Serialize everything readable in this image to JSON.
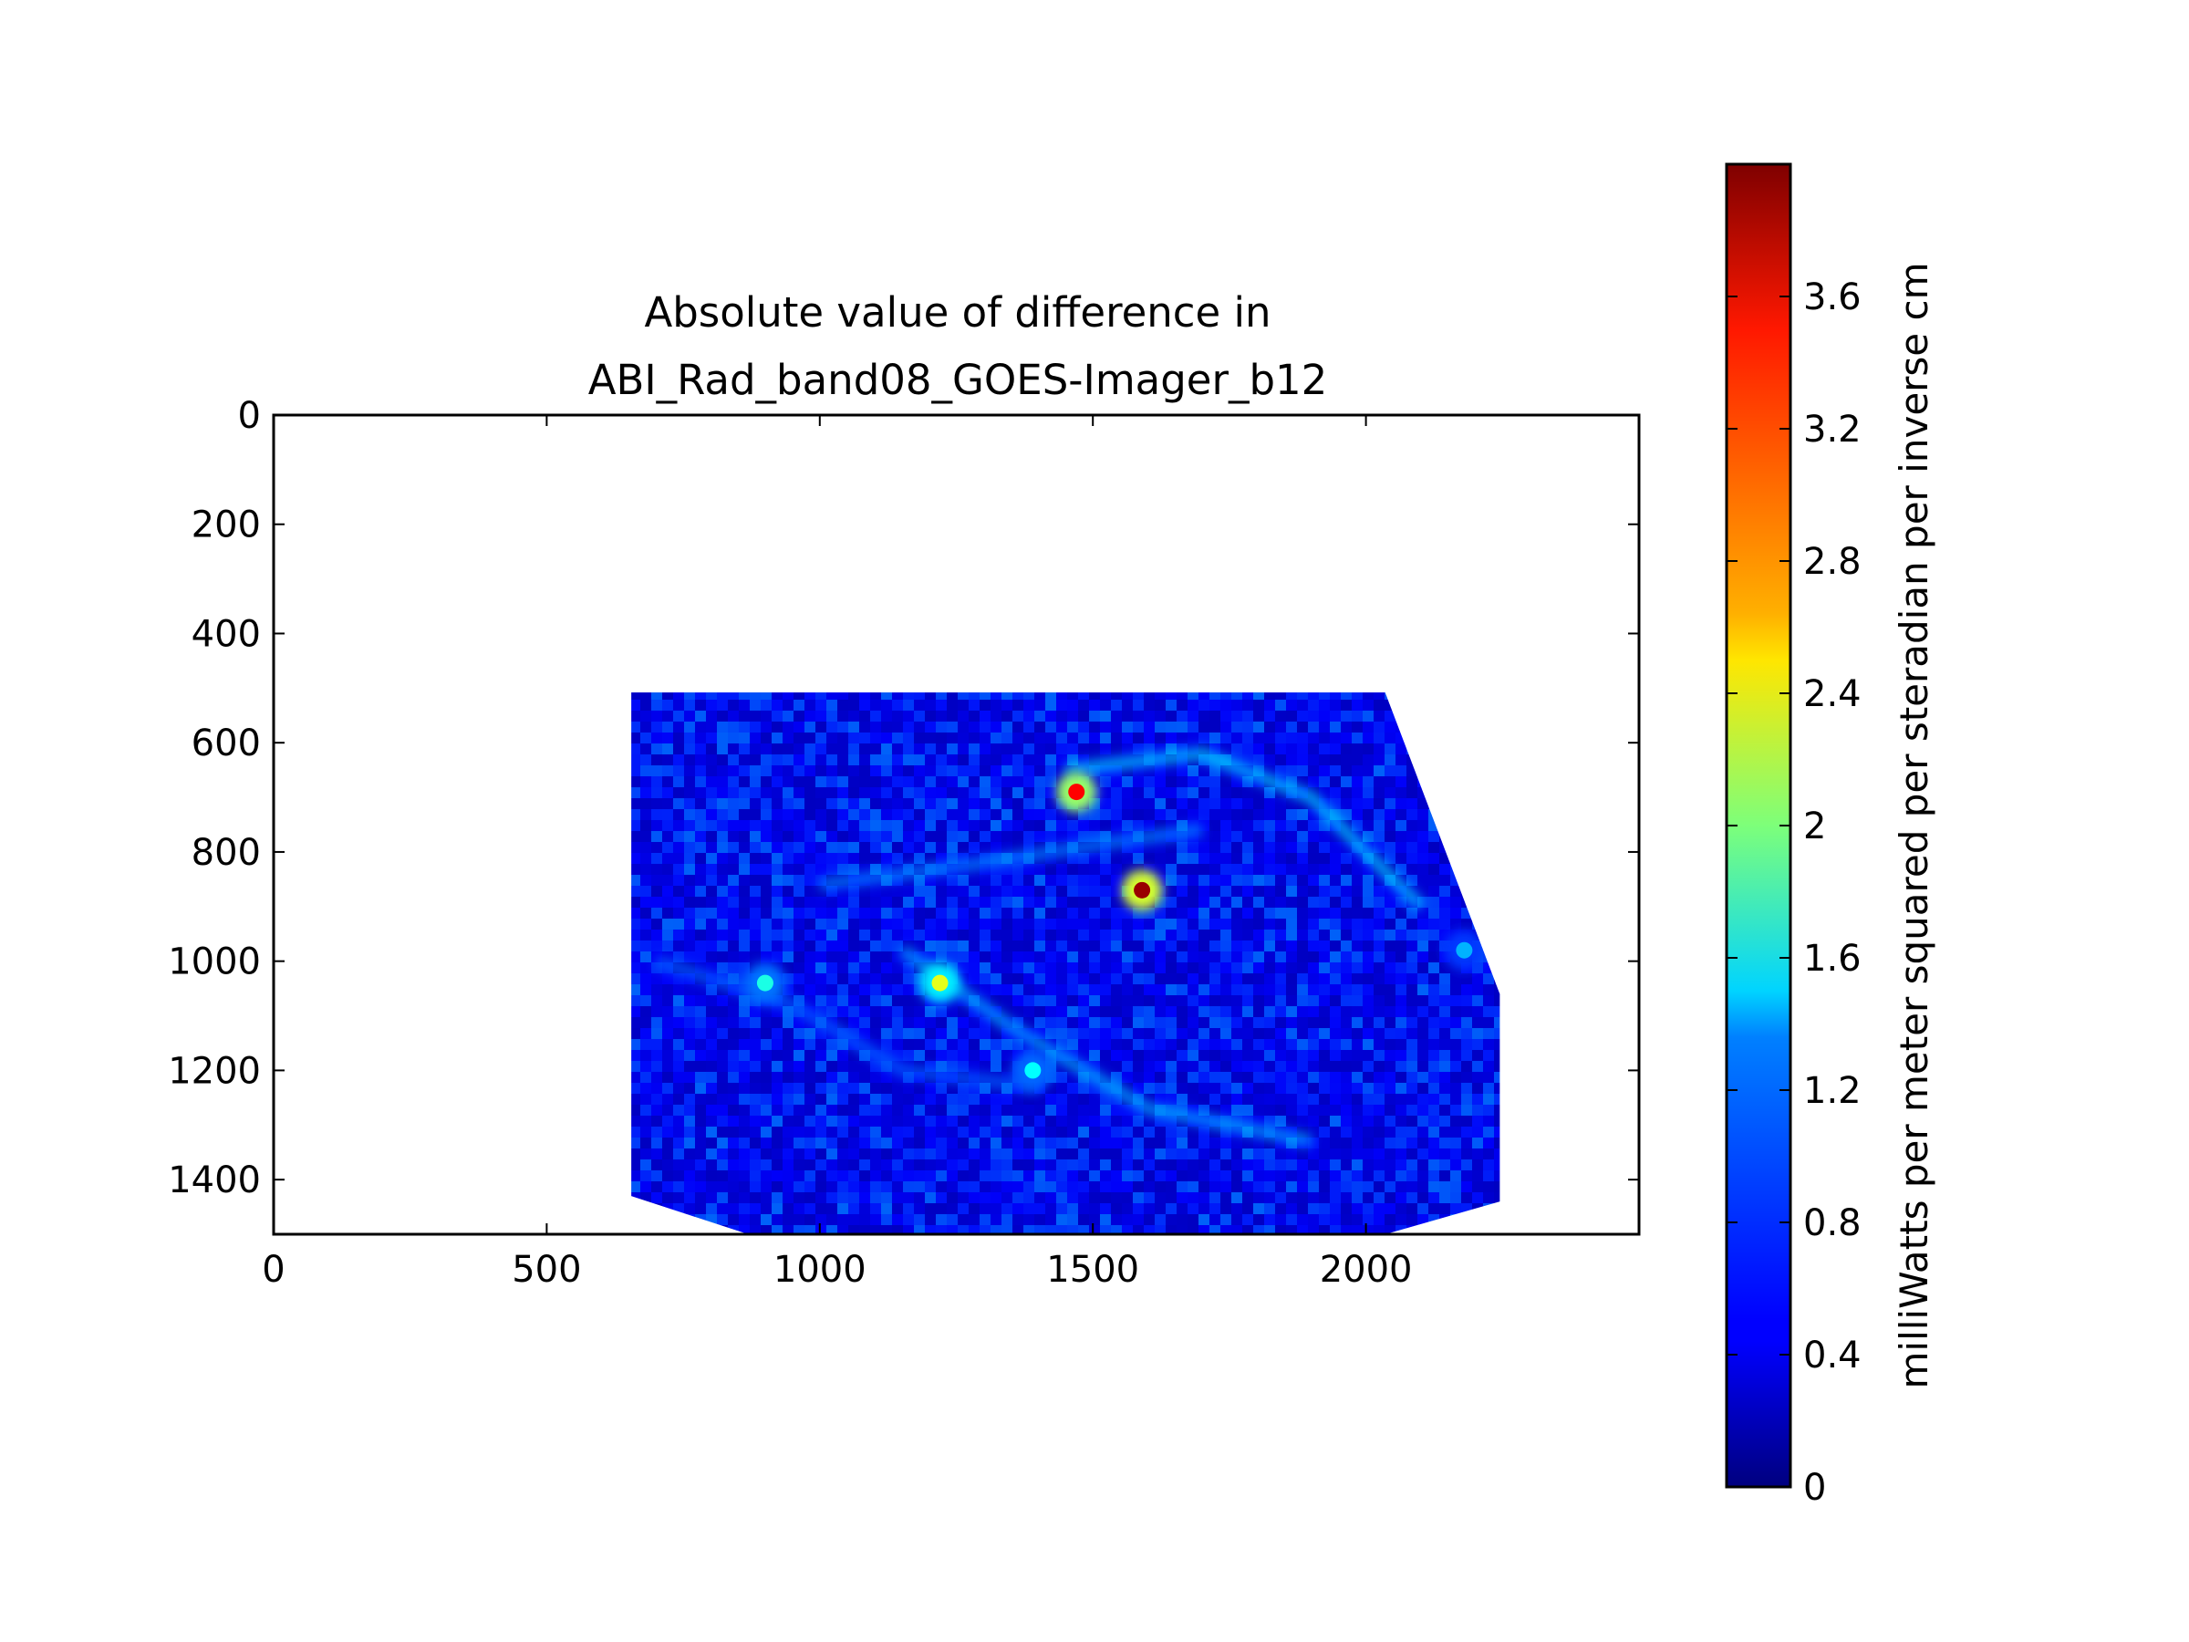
{
  "chart_data": {
    "type": "heatmap",
    "title": "Absolute value of difference in\nABI_Rad_band08_GOES-Imager_b12",
    "xlabel": "",
    "ylabel": "",
    "xlim": [
      0,
      2500
    ],
    "ylim": [
      1500,
      0
    ],
    "x_ticks": [
      "0",
      "500",
      "1000",
      "1500",
      "2000"
    ],
    "y_ticks": [
      "0",
      "200",
      "400",
      "600",
      "800",
      "1000",
      "1200",
      "1400"
    ],
    "data_region": {
      "outline_points": [
        [
          655,
          508
        ],
        [
          2035,
          508
        ],
        [
          2245,
          1060
        ],
        [
          2245,
          1440
        ],
        [
          2000,
          1510
        ],
        [
          900,
          1510
        ],
        [
          655,
          1430
        ]
      ],
      "background_level": 0.45
    },
    "hotspots": [
      {
        "x": 1470,
        "y": 690,
        "value": 3.5
      },
      {
        "x": 1590,
        "y": 870,
        "value": 3.9
      },
      {
        "x": 1220,
        "y": 1040,
        "value": 2.4
      },
      {
        "x": 900,
        "y": 1040,
        "value": 1.6
      },
      {
        "x": 1390,
        "y": 1200,
        "value": 1.5
      },
      {
        "x": 2180,
        "y": 980,
        "value": 1.2
      }
    ],
    "colorbar": {
      "colormap": "jet",
      "range": [
        0,
        4.0
      ],
      "ticks": [
        "0",
        "0.4",
        "0.8",
        "1.2",
        "1.6",
        "2",
        "2.4",
        "2.8",
        "3.2",
        "3.6"
      ],
      "label": "milliWatts per meter squared per steradian per inverse cm"
    },
    "grid": false
  },
  "title_lines": [
    "Absolute value of difference in",
    "ABI_Rad_band08_GOES-Imager_b12"
  ]
}
